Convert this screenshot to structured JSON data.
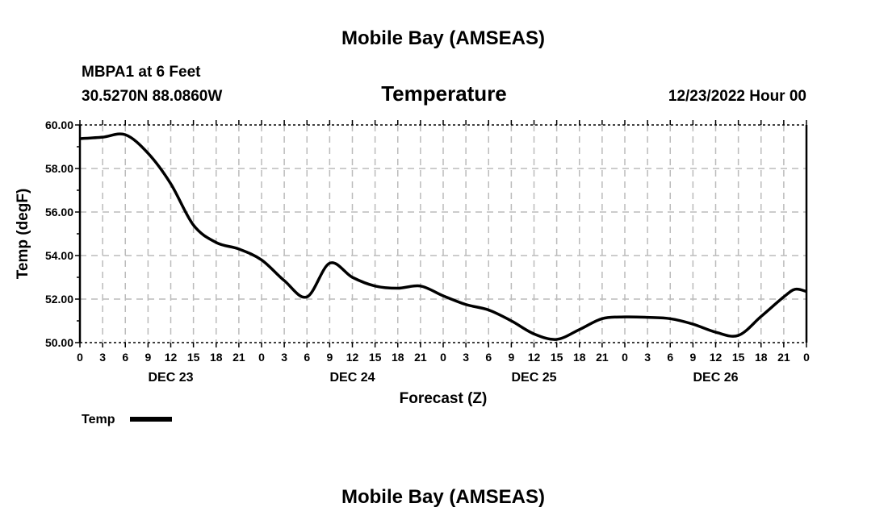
{
  "chart_data": {
    "type": "line",
    "title": "Mobile Bay (AMSEAS)",
    "subtitle": "Temperature",
    "station": "MBPA1 at 6 Feet",
    "location": "30.5270N  88.0860W",
    "run": "12/23/2022 Hour 00",
    "xlabel": "Forecast (Z)",
    "ylabel": "Temp (degF)",
    "ylim": [
      50,
      60
    ],
    "xlim_hours": [
      0,
      96
    ],
    "yticks": [
      "50.00",
      "52.00",
      "54.00",
      "56.00",
      "58.00",
      "60.00"
    ],
    "xtick_labels": [
      "0",
      "3",
      "6",
      "9",
      "12",
      "15",
      "18",
      "21",
      "0",
      "3",
      "6",
      "9",
      "12",
      "15",
      "18",
      "21",
      "0",
      "3",
      "6",
      "9",
      "12",
      "15",
      "18",
      "21",
      "0",
      "3",
      "6",
      "9",
      "12",
      "15",
      "18",
      "21",
      "0"
    ],
    "day_labels": [
      "DEC 23",
      "DEC 24",
      "DEC 25",
      "DEC 26"
    ],
    "grid": true,
    "legend": {
      "label": "Temp",
      "placement": "bottom-left"
    },
    "footer_title": "Mobile Bay (AMSEAS)",
    "series": [
      {
        "name": "Temp",
        "color": "#000000",
        "hours": [
          0,
          3,
          6,
          9,
          12,
          15,
          18,
          21,
          24,
          27,
          30,
          33,
          36,
          39,
          42,
          45,
          48,
          51,
          54,
          57,
          60,
          63,
          66,
          69,
          72,
          75,
          78,
          81,
          84,
          87,
          90,
          93,
          94.5,
          96
        ],
        "values": [
          59.37,
          59.44,
          59.55,
          58.7,
          57.3,
          55.4,
          54.6,
          54.3,
          53.8,
          52.85,
          52.1,
          53.65,
          53.0,
          52.6,
          52.5,
          52.6,
          52.15,
          51.75,
          51.5,
          51.0,
          50.4,
          50.15,
          50.6,
          51.1,
          51.18,
          51.16,
          51.1,
          50.85,
          50.48,
          50.33,
          51.2,
          52.1,
          52.45,
          52.35
        ]
      }
    ]
  }
}
